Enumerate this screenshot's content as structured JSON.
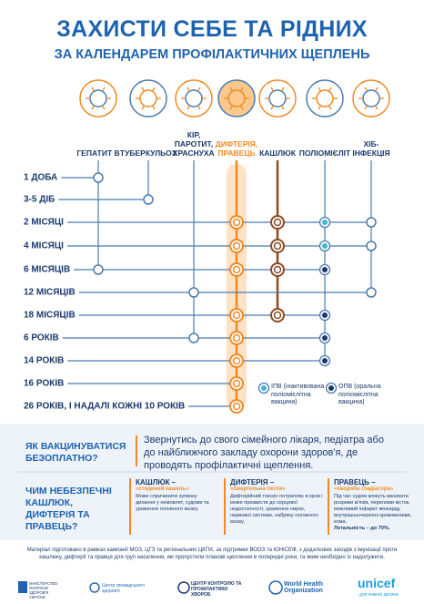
{
  "header": {
    "title": "ЗАХИСТИ СЕБЕ ТА РІДНИХ",
    "subtitle": "ЗА КАЛЕНДАРЕМ ПРОФІЛАКТИЧНИХ ЩЕПЛЕНЬ"
  },
  "vaccines": [
    "ГЕПАТИТ В",
    "ТУБЕРКУЛЬОЗ",
    "КІР, ПАРОТИТ, КРАСНУХА",
    "ДИФТЕРІЯ, ПРАВЕЦЬ",
    "КАШЛЮК",
    "ПОЛІОМІЄЛІТ",
    "ХІБ-ІНФЕКЦІЯ"
  ],
  "ages": [
    "1 ДОБА",
    "3-5 ДІБ",
    "2 МІСЯЦІ",
    "4 МІСЯЦІ",
    "6 МІСЯЦІВ",
    "12 МІСЯЦІВ",
    "18 МІСЯЦІВ",
    "6 РОКІВ",
    "14 РОКІВ",
    "16 РОКІВ",
    "26 РОКІВ, І НАДАЛІ КОЖНІ 10 РОКІВ"
  ],
  "legend": {
    "ipv": "ІПВ (інактивована поліомієлітна вакцина)",
    "opv": "ОПВ (оральна поліомієлітна вакцина)"
  },
  "free": {
    "question": "ЯК ВАКЦИНУВАТИСЯ БЕЗОПЛАТНО?",
    "answer": "Звернутись до свого сімейного лікаря, педіатра або до найближчого закладу охорони здоров'я, де проводять профілактичні щеплення."
  },
  "danger": {
    "question": "ЧИМ НЕБЕЗПЕЧНІ КАШЛЮК, ДИФТЕРІЯ ТА ПРАВЕЦЬ?",
    "cards": [
      {
        "name": "КАШЛЮК –",
        "nickname": "«стодений кашель»",
        "text": "Може спричинити зупинку дихання у немовлят, судоми та ураження головного мозку."
      },
      {
        "name": "ДИФТЕРІЯ –",
        "nickname": "«смертельна петля»",
        "text": "Дифтерійний токсин потрапляє в кров і може призвести до серцевої недостатності, ураження нирок, нервової системи, набряку головного мозку."
      },
      {
        "name": "ПРАВЕЦЬ –",
        "nickname": "«хвороба гладіатора»",
        "text": "Під час судом можуть виникати розриви м'язів, переломи кісток, можливий інфаркт міокарду, внутрішньочерепні крововиливи, кома.",
        "emphasis": "Летальність – до 70%."
      }
    ]
  },
  "footer": {
    "note": "Матеріал підготовано в рамках кампанії МОЗ, ЦГЗ та регіональних ЦКПХ, за підтримки ВООЗ та ЮНІСЕФ, з додаткових заходів з імунізації проти кашлюку, дифтерії та правця для груп населення, які пропустили планові щеплення в попередні роки, та яким необхідно їх надолужити.",
    "logos": [
      "МІНІСТЕРСТВО ОХОРОНИ ЗДОРОВ'Я УКРАЇНИ",
      "Центр громадського здоров'я",
      "ЦЕНТР КОНТРОЛЮ ТА ПРОФІЛАКТИКИ ХВОРОБ",
      "World Health Organization",
      "unicef",
      "для кожної дитини"
    ]
  }
}
